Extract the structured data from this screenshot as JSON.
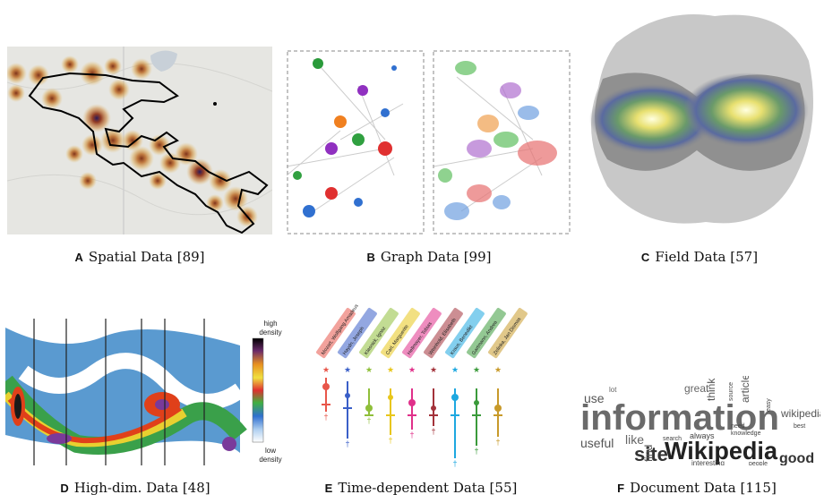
{
  "panels": [
    {
      "letter": "A",
      "caption": "Spatial Data [89]"
    },
    {
      "letter": "B",
      "caption": "Graph Data [99]"
    },
    {
      "letter": "C",
      "caption": "Field Data [57]"
    },
    {
      "letter": "D",
      "caption": "High-dim. Data [48]"
    },
    {
      "letter": "E",
      "caption": "Time-dependent Data [55]"
    },
    {
      "letter": "F",
      "caption": "Document Data [115]"
    }
  ],
  "density_legend": {
    "high": "high",
    "high2": "density",
    "low": "low",
    "low2": "density"
  },
  "timeline_names": [
    "Mozart, Wolfgang Amadeus",
    "Haydn, Joseph",
    "Klasnick, Ignaz",
    "Carl, Marguerite",
    "Hellmayer, Tobias",
    "Weinhold, Elisabeth",
    "Kraus, Benedikt",
    "Gartmann, Andrea",
    "Zelinka, Jan Dismas"
  ],
  "timeline_colors": [
    "#e8564a",
    "#3a5fc8",
    "#8fbf3a",
    "#e8c61a",
    "#e0308a",
    "#a3323a",
    "#1ea8e0",
    "#3a9a3a",
    "#c89a2a"
  ],
  "words": {
    "information": "information",
    "wikipedia_big": "Wikipedia",
    "site": "site",
    "good": "good",
    "useful": "useful",
    "use": "use",
    "articles": "articles",
    "wikipedia_small": "wikipedia",
    "always": "always",
    "think": "think",
    "like": "like",
    "find": "find",
    "interesting": "interesting",
    "great": "great",
    "people": "people",
    "search": "search",
    "source": "source",
    "best": "best",
    "knowledge": "knowledge",
    "easy": "easy",
    "need": "need",
    "lot": "lot"
  }
}
